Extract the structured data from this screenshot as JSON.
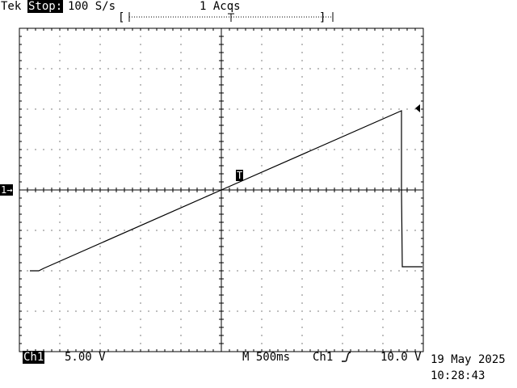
{
  "header": {
    "brand": "Tek",
    "state": "Stop:",
    "sample_rate": "100 S/s",
    "acquisitions": "1 Acqs",
    "bracket_left": "[",
    "bracket_right": "]"
  },
  "markers": {
    "trigger_label": "T",
    "channel_ground_label": "1→"
  },
  "footer": {
    "channel": "Ch1",
    "volts_per_div": "5.00 V",
    "timebase": "M 500ms",
    "trigger_source": "Ch1",
    "trigger_slope_icon": "rising-edge-icon",
    "trigger_level": "10.0 V",
    "date": "19 May 2025",
    "time": "10:28:43"
  },
  "chart_data": {
    "type": "line",
    "horizontal_divisions": 10,
    "vertical_divisions": 8,
    "volts_per_div": 5.0,
    "seconds_per_div": 0.5,
    "grid": true,
    "series": [
      {
        "values_time_s": [
          -2.37,
          -2.26,
          -2.2,
          0.0,
          2.23,
          2.23,
          2.24,
          2.49
        ],
        "values_volts": [
          -10.0,
          -10.0,
          -9.7,
          0.0,
          9.8,
          0.0,
          -9.5,
          -9.5
        ]
      }
    ]
  }
}
